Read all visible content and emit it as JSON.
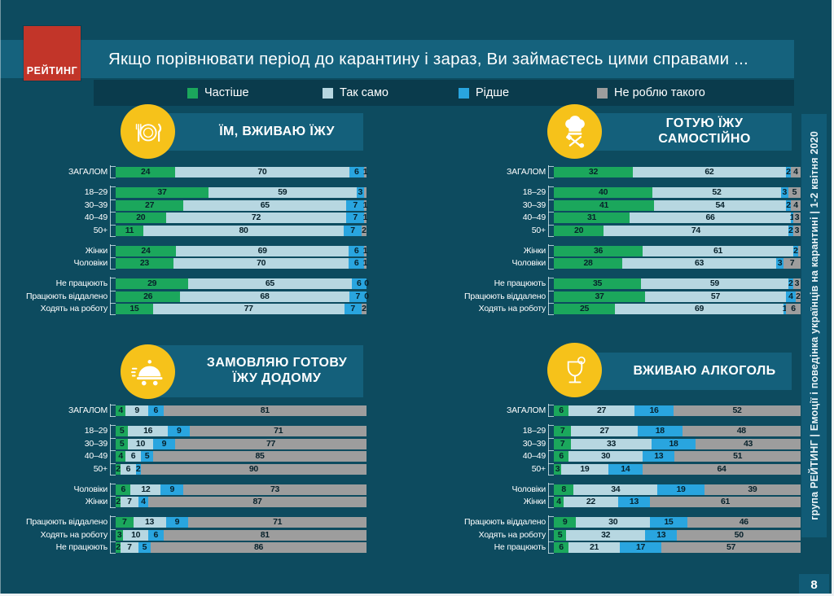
{
  "page": {
    "title": "Якщо порівнювати  період до карантину і зараз, Ви займаєтесь цими справами  ...",
    "logo_text": "РЕЙТИНГ",
    "sidebar_text": "група РЕЙТИНГ  |  Емоції і поведінка українців на карантині  |  1-2 квітня 2020",
    "page_number": "8"
  },
  "legend": {
    "items": [
      {
        "label": "Частіше",
        "color": "#1ba75c"
      },
      {
        "label": "Так само",
        "color": "#b7d7e1"
      },
      {
        "label": "Рідше",
        "color": "#29a5df"
      },
      {
        "label": "Не роблю такого",
        "color": "#9d9d9d"
      }
    ]
  },
  "chart_data": [
    {
      "type": "bar",
      "stacked": true,
      "orientation": "horizontal",
      "unit": "%",
      "x_range": [
        0,
        100
      ],
      "title": "ЇМ, ВЖИВАЮ ЇЖУ",
      "icon": "plate-icon",
      "series_names": [
        "Частіше",
        "Так само",
        "Рідше",
        "Не роблю такого"
      ],
      "groups": [
        [
          {
            "label": "ЗАГАЛОМ",
            "values": [
              24,
              70,
              6,
              1
            ]
          }
        ],
        [
          {
            "label": "18–29",
            "values": [
              37,
              59,
              3,
              1
            ],
            "display": [
              "37",
              "59",
              "3",
              ""
            ]
          },
          {
            "label": "30–39",
            "values": [
              27,
              65,
              7,
              1
            ]
          },
          {
            "label": "40–49",
            "values": [
              20,
              72,
              7,
              1
            ]
          },
          {
            "label": "50+",
            "values": [
              11,
              80,
              7,
              2
            ]
          }
        ],
        [
          {
            "label": "Жінки",
            "values": [
              24,
              69,
              6,
              1
            ]
          },
          {
            "label": "Чоловіки",
            "values": [
              23,
              70,
              6,
              1
            ]
          }
        ],
        [
          {
            "label": "Не працюють",
            "values": [
              29,
              65,
              6,
              0
            ]
          },
          {
            "label": "Працюють віддалено",
            "values": [
              26,
              68,
              7,
              0
            ]
          },
          {
            "label": "Ходять на роботу",
            "values": [
              15,
              77,
              7,
              2
            ]
          }
        ]
      ]
    },
    {
      "type": "bar",
      "stacked": true,
      "orientation": "horizontal",
      "unit": "%",
      "x_range": [
        0,
        100
      ],
      "title": "ГОТУЮ ЇЖУ САМОСТІЙНО",
      "icon": "chef-icon",
      "series_names": [
        "Частіше",
        "Так само",
        "Рідше",
        "Не роблю такого"
      ],
      "groups": [
        [
          {
            "label": "ЗАГАЛОМ",
            "values": [
              32,
              62,
              2,
              4
            ]
          }
        ],
        [
          {
            "label": "18–29",
            "values": [
              40,
              52,
              3,
              5
            ]
          },
          {
            "label": "30–39",
            "values": [
              41,
              54,
              2,
              4
            ]
          },
          {
            "label": "40–49",
            "values": [
              31,
              66,
              1,
              3
            ]
          },
          {
            "label": "50+",
            "values": [
              20,
              74,
              2,
              3
            ]
          }
        ],
        [
          {
            "label": "Жінки",
            "values": [
              36,
              61,
              2,
              1
            ],
            "display": [
              "36",
              "61",
              "2",
              ""
            ]
          },
          {
            "label": "Чоловіки",
            "values": [
              28,
              63,
              3,
              7
            ]
          }
        ],
        [
          {
            "label": "Не працюють",
            "values": [
              35,
              59,
              2,
              3
            ]
          },
          {
            "label": "Працюють віддалено",
            "values": [
              37,
              57,
              4,
              2
            ]
          },
          {
            "label": "Ходять на роботу",
            "values": [
              25,
              69,
              1,
              6
            ]
          }
        ]
      ]
    },
    {
      "type": "bar",
      "stacked": true,
      "orientation": "horizontal",
      "unit": "%",
      "x_range": [
        0,
        100
      ],
      "title": "ЗАМОВЛЯЮ ГОТОВУ ЇЖУ ДОДОМУ",
      "icon": "delivery-icon",
      "series_names": [
        "Частіше",
        "Так само",
        "Рідше",
        "Не роблю такого"
      ],
      "groups": [
        [
          {
            "label": "ЗАГАЛОМ",
            "values": [
              4,
              9,
              6,
              81
            ]
          }
        ],
        [
          {
            "label": "18–29",
            "values": [
              5,
              16,
              9,
              71
            ]
          },
          {
            "label": "30–39",
            "values": [
              5,
              10,
              9,
              77
            ]
          },
          {
            "label": "40–49",
            "values": [
              4,
              6,
              5,
              85
            ]
          },
          {
            "label": "50+",
            "values": [
              2,
              6,
              2,
              90
            ]
          }
        ],
        [
          {
            "label": "Чоловіки",
            "values": [
              6,
              12,
              9,
              73
            ]
          },
          {
            "label": "Жінки",
            "values": [
              2,
              7,
              4,
              87
            ]
          }
        ],
        [
          {
            "label": "Працюють віддалено",
            "values": [
              7,
              13,
              9,
              71
            ]
          },
          {
            "label": "Ходять на роботу",
            "values": [
              3,
              10,
              6,
              81
            ]
          },
          {
            "label": "Не працюють",
            "values": [
              2,
              7,
              5,
              86
            ]
          }
        ]
      ]
    },
    {
      "type": "bar",
      "stacked": true,
      "orientation": "horizontal",
      "unit": "%",
      "x_range": [
        0,
        100
      ],
      "title": "ВЖИВАЮ АЛКОГОЛЬ",
      "icon": "cocktail-icon",
      "series_names": [
        "Частіше",
        "Так само",
        "Рідше",
        "Не роблю такого"
      ],
      "groups": [
        [
          {
            "label": "ЗАГАЛОМ",
            "values": [
              6,
              27,
              16,
              52
            ]
          }
        ],
        [
          {
            "label": "18–29",
            "values": [
              7,
              27,
              18,
              48
            ]
          },
          {
            "label": "30–39",
            "values": [
              7,
              33,
              18,
              43
            ]
          },
          {
            "label": "40–49",
            "values": [
              6,
              30,
              13,
              51
            ]
          },
          {
            "label": "50+",
            "values": [
              3,
              19,
              14,
              64
            ]
          }
        ],
        [
          {
            "label": "Чоловіки",
            "values": [
              8,
              34,
              19,
              39
            ]
          },
          {
            "label": "Жінки",
            "values": [
              4,
              22,
              13,
              61
            ]
          }
        ],
        [
          {
            "label": "Працюють віддалено",
            "values": [
              9,
              30,
              15,
              46
            ]
          },
          {
            "label": "Ходять на роботу",
            "values": [
              5,
              32,
              13,
              50
            ]
          },
          {
            "label": "Не працюють",
            "values": [
              6,
              21,
              17,
              57
            ]
          }
        ]
      ]
    }
  ]
}
